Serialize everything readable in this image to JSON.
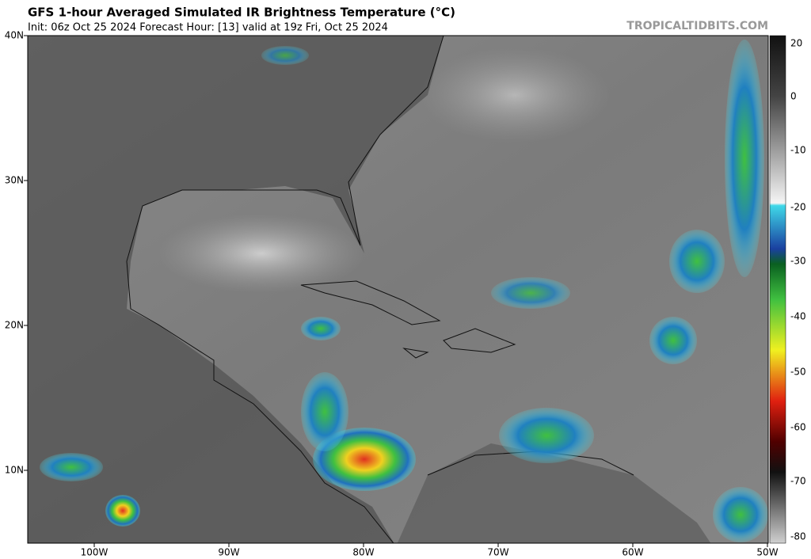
{
  "header": {
    "title": "GFS 1-hour Averaged Simulated IR Brightness Temperature (°C)",
    "subtitle": "Init: 06z Oct 25 2024   Forecast Hour: [13]   valid at 19z Fri, Oct 25 2024",
    "watermark": "TROPICALTIDBITS.COM"
  },
  "map": {
    "lat_labels": [
      "40N",
      "30N",
      "20N",
      "10N"
    ],
    "lon_labels": [
      "100W",
      "90W",
      "80W",
      "70W",
      "60W",
      "50W"
    ]
  },
  "colorbar": {
    "labels": [
      "20",
      "0",
      "-10",
      "-20",
      "-30",
      "-40",
      "-50",
      "-60",
      "-70",
      "-80"
    ]
  }
}
